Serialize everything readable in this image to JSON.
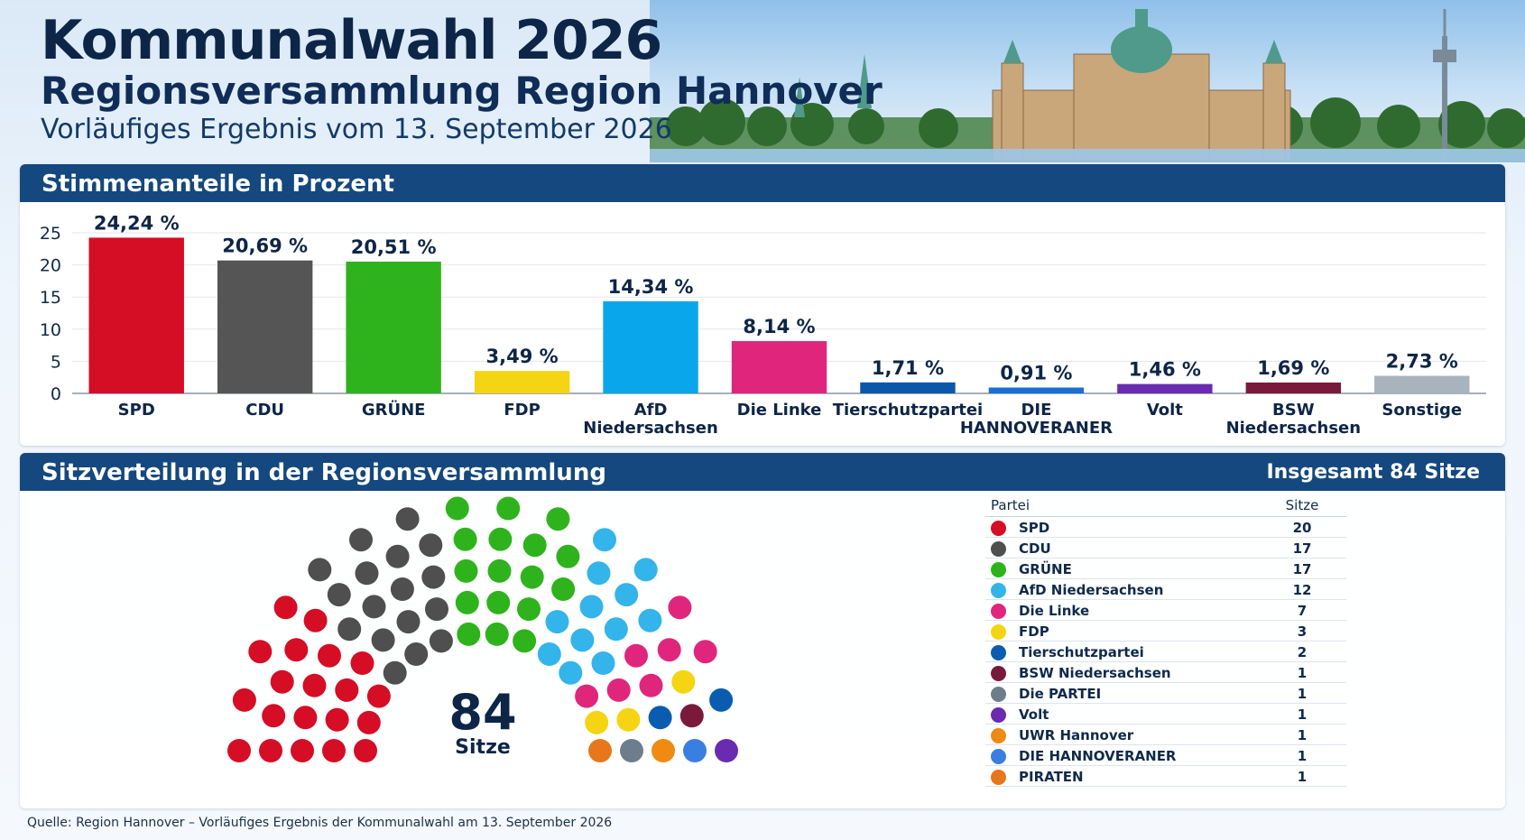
{
  "header": {
    "title": "Kommunalwahl 2026",
    "subtitle": "Regionsversammlung Region Hannover",
    "date_line": "Vorläufiges Ergebnis vom 13. September 2026"
  },
  "vote_panel": {
    "title": "Stimmenanteile in Prozent"
  },
  "seat_panel": {
    "title": "Sitzverteilung in der Regionsversammlung",
    "total_label": "Insgesamt 84 Sitze",
    "center_number": "84",
    "center_label": "Sitze"
  },
  "legend": {
    "header_party": "Partei",
    "header_seats": "Sitze",
    "rows": [
      {
        "party": "SPD",
        "seats": "20",
        "color": "#d50d25"
      },
      {
        "party": "CDU",
        "seats": "17",
        "color": "#4f4f4f"
      },
      {
        "party": "GRÜNE",
        "seats": "17",
        "color": "#2eb31d"
      },
      {
        "party": "AfD Niedersachsen",
        "seats": "12",
        "color": "#33b4ea"
      },
      {
        "party": "Die Linke",
        "seats": "7",
        "color": "#e0267c"
      },
      {
        "party": "FDP",
        "seats": "3",
        "color": "#f5d414"
      },
      {
        "party": "Tierschutzpartei",
        "seats": "2",
        "color": "#0a5cb0"
      },
      {
        "party": "BSW Niedersachsen",
        "seats": "1",
        "color": "#7a1a3a"
      },
      {
        "party": "Die PARTEI",
        "seats": "1",
        "color": "#6e7d8c"
      },
      {
        "party": "Volt",
        "seats": "1",
        "color": "#6a2bb0"
      },
      {
        "party": "UWR Hannover",
        "seats": "1",
        "color": "#ef8a12"
      },
      {
        "party": "DIE HANNOVERANER",
        "seats": "1",
        "color": "#3a7fe0"
      },
      {
        "party": "PIRATEN",
        "seats": "1",
        "color": "#e8761a"
      }
    ]
  },
  "source": "Quelle: Region Hannover – Vorläufiges Ergebnis der Kommunalwahl am 13. September 2026",
  "chart_data": [
    {
      "type": "bar",
      "title": "Stimmenanteile in Prozent",
      "categories": [
        "SPD",
        "CDU",
        "GRÜNE",
        "FDP",
        "AfD\nNiedersachsen",
        "Die Linke",
        "Tierschutzpartei",
        "DIE\nHANNOVERANER",
        "Volt",
        "BSW\nNiedersachsen",
        "Sonstige"
      ],
      "values": [
        24.24,
        20.69,
        20.51,
        3.49,
        14.34,
        8.14,
        1.71,
        0.91,
        1.46,
        1.69,
        2.73
      ],
      "value_labels": [
        "24,24 %",
        "20,69 %",
        "20,51 %",
        "3,49 %",
        "14,34 %",
        "8,14 %",
        "1,71 %",
        "0,91 %",
        "1,46 %",
        "1,69 %",
        "2,73 %"
      ],
      "colors": [
        "#d50d25",
        "#555555",
        "#2eb31d",
        "#f5d414",
        "#0aa6ec",
        "#e0267c",
        "#0a58aa",
        "#1a6fd6",
        "#6a2bb0",
        "#7a1a3a",
        "#a9b3be"
      ],
      "ylim": [
        0,
        25
      ],
      "yticks": [
        0,
        5,
        10,
        15,
        20,
        25
      ],
      "grid": true,
      "xlabel": "",
      "ylabel": ""
    },
    {
      "type": "pie",
      "title": "Sitzverteilung in der Regionsversammlung",
      "categories": [
        "SPD",
        "CDU",
        "GRÜNE",
        "AfD Niedersachsen",
        "Die Linke",
        "FDP",
        "Tierschutzpartei",
        "BSW Niedersachsen",
        "Die PARTEI",
        "Volt",
        "UWR Hannover",
        "DIE HANNOVERANER",
        "PIRATEN"
      ],
      "values": [
        20,
        17,
        17,
        12,
        7,
        3,
        2,
        1,
        1,
        1,
        1,
        1,
        1
      ],
      "total": 84
    }
  ]
}
